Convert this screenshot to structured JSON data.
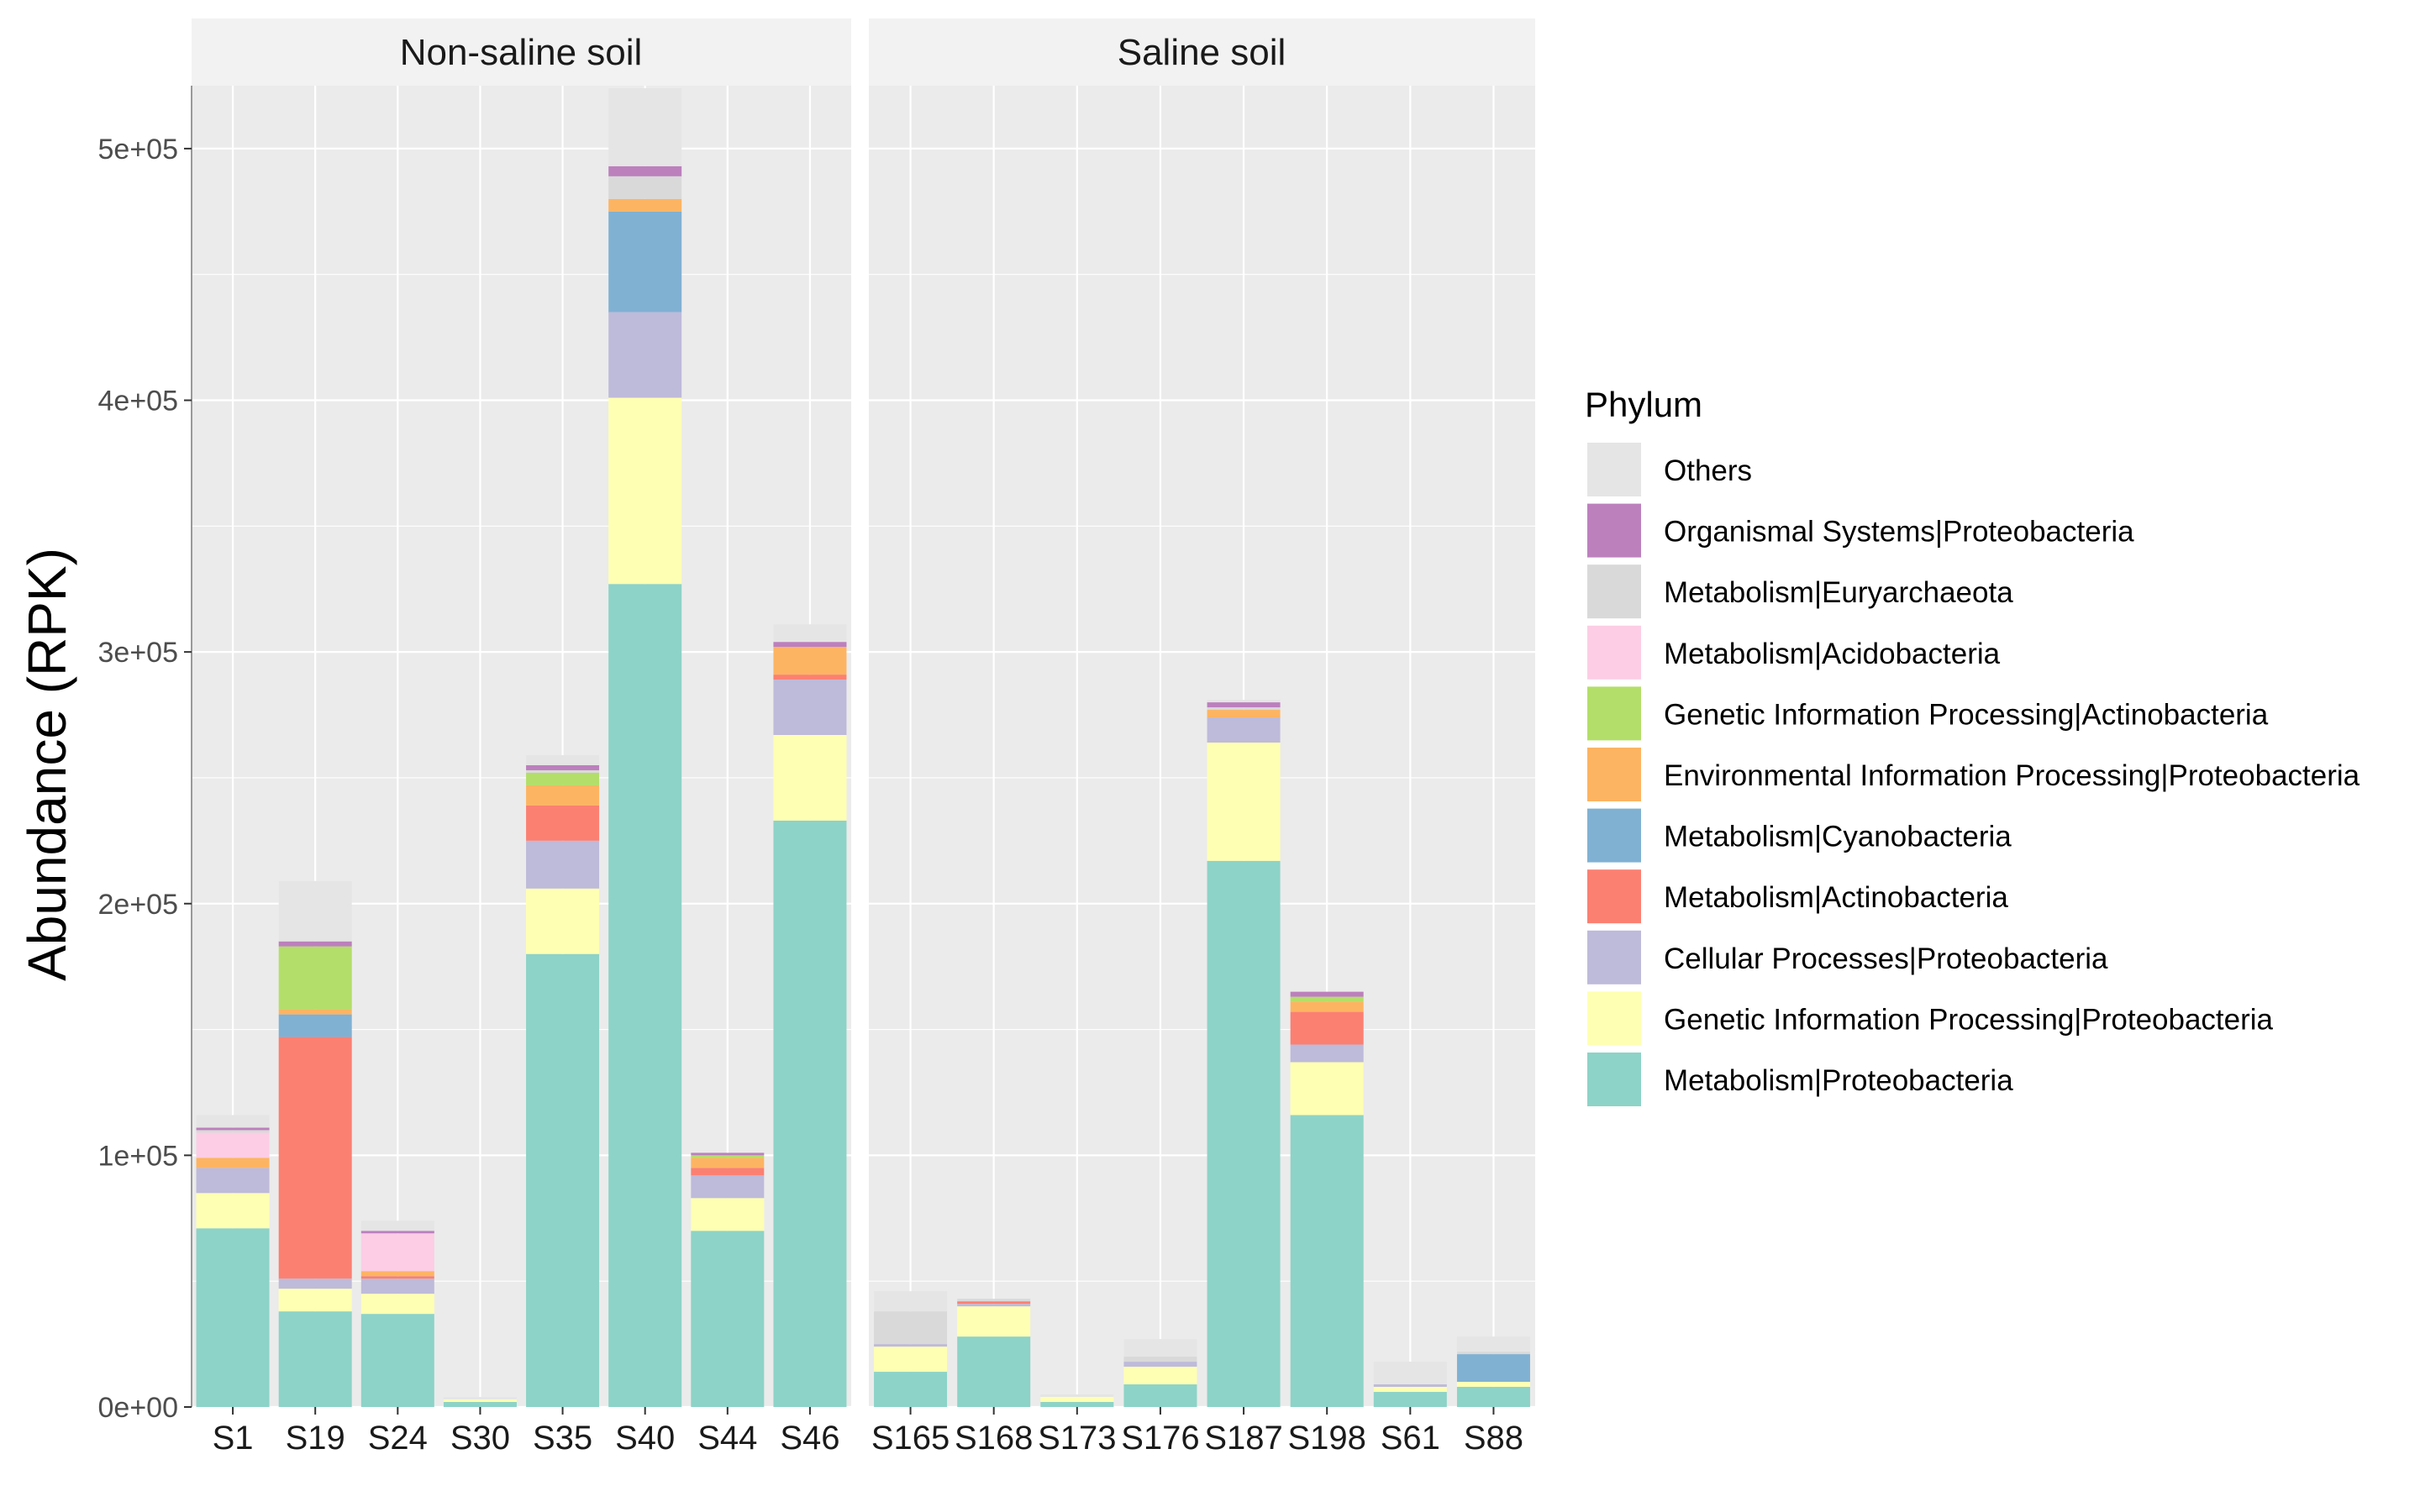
{
  "colors": {
    "panel_bg": "#EBEBEB",
    "strip_bg": "#F2F2F2",
    "gridline": "#FFFFFF",
    "axis_line": "#999999"
  },
  "chart_data": {
    "type": "bar",
    "stacked": true,
    "title": "",
    "xlabel": "",
    "ylabel": "Abundance (RPK)",
    "ylim": [
      0,
      525000
    ],
    "yticks": [
      0,
      100000,
      200000,
      300000,
      400000,
      500000
    ],
    "ytick_labels": [
      "0e+00",
      "1e+05",
      "2e+05",
      "3e+05",
      "4e+05",
      "5e+05"
    ],
    "grid": true,
    "legend": {
      "title": "Phylum",
      "position": "right",
      "entries": [
        {
          "name": "Others",
          "color": "#E5E5E5"
        },
        {
          "name": "Organismal Systems|Proteobacteria",
          "color": "#BC80BD"
        },
        {
          "name": "Metabolism|Euryarchaeota",
          "color": "#D9D9D9"
        },
        {
          "name": "Metabolism|Acidobacteria",
          "color": "#FCCDE5"
        },
        {
          "name": "Genetic Information Processing|Actinobacteria",
          "color": "#B3DE69"
        },
        {
          "name": "Environmental Information Processing|Proteobacteria",
          "color": "#FDB462"
        },
        {
          "name": "Metabolism|Cyanobacteria",
          "color": "#80B1D3"
        },
        {
          "name": "Metabolism|Actinobacteria",
          "color": "#FB8072"
        },
        {
          "name": "Cellular Processes|Proteobacteria",
          "color": "#BEBADA"
        },
        {
          "name": "Genetic Information Processing|Proteobacteria",
          "color": "#FFFFB3"
        },
        {
          "name": "Metabolism|Proteobacteria",
          "color": "#8DD3C7"
        }
      ]
    },
    "stack_order": [
      "Metabolism|Proteobacteria",
      "Genetic Information Processing|Proteobacteria",
      "Cellular Processes|Proteobacteria",
      "Metabolism|Actinobacteria",
      "Metabolism|Cyanobacteria",
      "Environmental Information Processing|Proteobacteria",
      "Genetic Information Processing|Actinobacteria",
      "Metabolism|Acidobacteria",
      "Metabolism|Euryarchaeota",
      "Organismal Systems|Proteobacteria",
      "Others"
    ],
    "facets": [
      {
        "name": "Non-saline soil",
        "samples": [
          {
            "label": "S1",
            "values": [
              71000,
              14000,
              10000,
              0,
              0,
              4000,
              0,
              10000,
              1000,
              1000,
              5000
            ]
          },
          {
            "label": "S19",
            "values": [
              38000,
              9000,
              4000,
              96000,
              9000,
              2000,
              25000,
              0,
              0,
              2000,
              24000
            ]
          },
          {
            "label": "S24",
            "values": [
              37000,
              8000,
              6000,
              1000,
              0,
              2000,
              0,
              15000,
              0,
              1000,
              4000
            ]
          },
          {
            "label": "S30",
            "values": [
              2000,
              1000,
              0,
              0,
              0,
              0,
              0,
              0,
              0,
              0,
              1000
            ]
          },
          {
            "label": "S35",
            "values": [
              180000,
              26000,
              19000,
              14000,
              0,
              8000,
              5000,
              0,
              1000,
              2000,
              4000
            ]
          },
          {
            "label": "S40",
            "values": [
              327000,
              74000,
              34000,
              0,
              40000,
              5000,
              0,
              0,
              9000,
              4000,
              31000
            ]
          },
          {
            "label": "S44",
            "values": [
              70000,
              13000,
              9000,
              3000,
              0,
              4000,
              1000,
              0,
              0,
              1000,
              0
            ]
          },
          {
            "label": "S46",
            "values": [
              233000,
              34000,
              22000,
              2000,
              0,
              11000,
              0,
              0,
              0,
              2000,
              7000
            ]
          }
        ]
      },
      {
        "name": "Saline soil",
        "samples": [
          {
            "label": "S165",
            "values": [
              14000,
              10000,
              1000,
              0,
              0,
              0,
              0,
              0,
              13000,
              0,
              8000
            ]
          },
          {
            "label": "S168",
            "values": [
              28000,
              12000,
              1000,
              1000,
              0,
              0,
              0,
              0,
              1000,
              0,
              0
            ]
          },
          {
            "label": "S173",
            "values": [
              2000,
              2000,
              0,
              0,
              0,
              0,
              0,
              0,
              0,
              0,
              1000
            ]
          },
          {
            "label": "S176",
            "values": [
              9000,
              7000,
              2000,
              0,
              0,
              0,
              0,
              0,
              2000,
              0,
              7000
            ]
          },
          {
            "label": "S187",
            "values": [
              217000,
              47000,
              10000,
              0,
              0,
              3000,
              0,
              0,
              1000,
              2000,
              1000
            ]
          },
          {
            "label": "S198",
            "values": [
              116000,
              21000,
              7000,
              13000,
              0,
              4000,
              2000,
              0,
              0,
              2000,
              0
            ]
          },
          {
            "label": "S61",
            "values": [
              6000,
              2000,
              1000,
              0,
              0,
              0,
              0,
              0,
              0,
              0,
              9000
            ]
          },
          {
            "label": "S88",
            "values": [
              8000,
              2000,
              0,
              0,
              11000,
              0,
              0,
              0,
              1000,
              0,
              6000
            ]
          }
        ]
      }
    ]
  }
}
